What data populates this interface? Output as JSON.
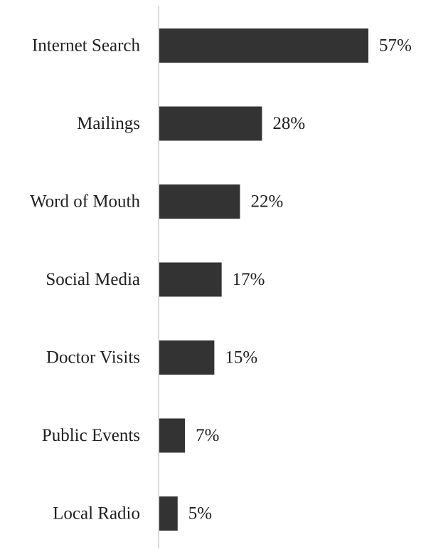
{
  "chart_data": {
    "type": "bar",
    "orientation": "horizontal",
    "categories": [
      "Internet Search",
      "Mailings",
      "Word of Mouth",
      "Social Media",
      "Doctor Visits",
      "Public Events",
      "Local Radio"
    ],
    "values": [
      57,
      28,
      22,
      17,
      15,
      7,
      5
    ],
    "value_labels": [
      "57%",
      "28%",
      "22%",
      "17%",
      "15%",
      "7%",
      "5%"
    ],
    "unit": "%",
    "title": "",
    "xlabel": "",
    "ylabel": "",
    "xlim": [
      0,
      57
    ],
    "grid": false,
    "legend": "none",
    "bar_color": "#333333",
    "axis_color": "#d0d0d0",
    "text_color": "#1f1f1f"
  }
}
